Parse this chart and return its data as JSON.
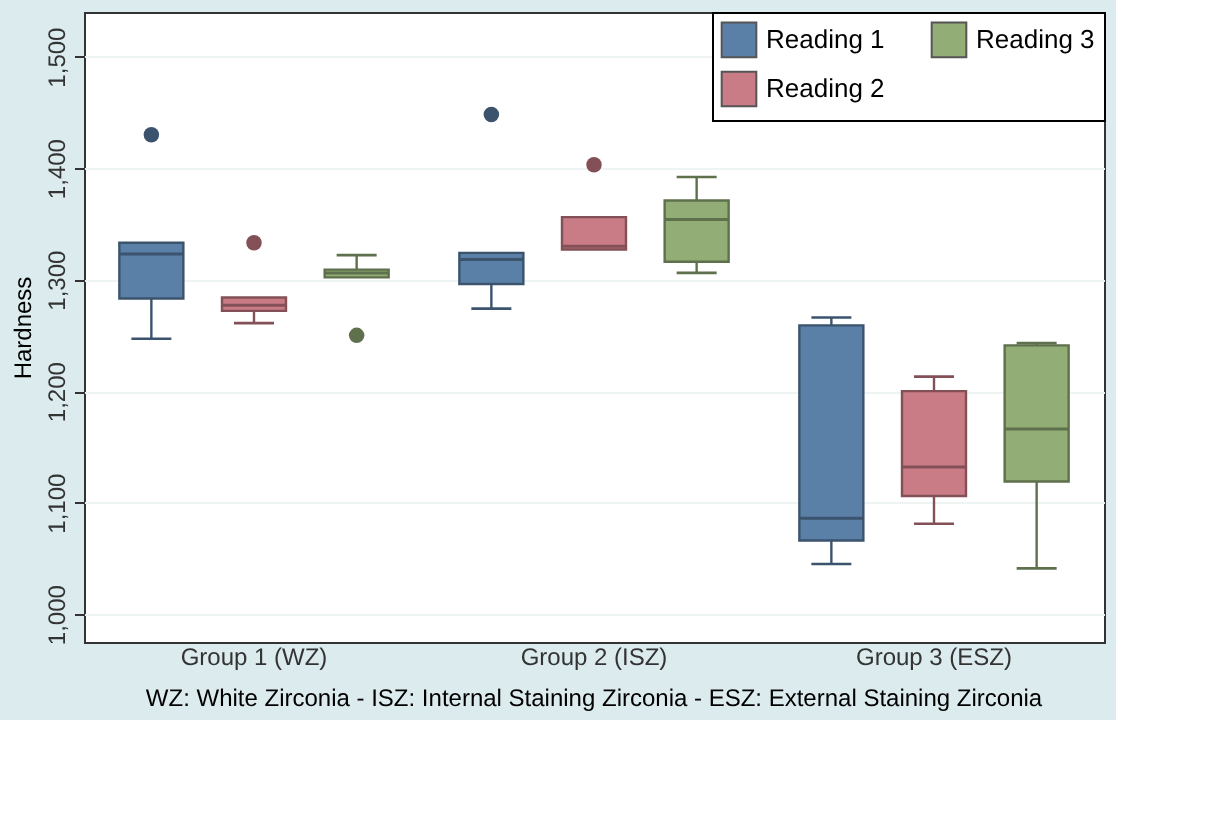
{
  "chart_data": {
    "type": "box",
    "ylabel": "Hardness",
    "categories": [
      "Group 1 (WZ)",
      "Group 2 (ISZ)",
      "Group 3 (ESZ)"
    ],
    "series": [
      {
        "name": "Reading 1",
        "color": "#5b80a8",
        "boxes": [
          {
            "low": 1247,
            "q1": 1283,
            "median": 1323,
            "q3": 1333,
            "high": 1333,
            "outliers": [
              1430
            ]
          },
          {
            "low": 1274,
            "q1": 1296,
            "median": 1318,
            "q3": 1324,
            "high": 1324,
            "outliers": [
              1448
            ]
          },
          {
            "low": 1045,
            "q1": 1066,
            "median": 1086,
            "q3": 1259,
            "high": 1266
          }
        ]
      },
      {
        "name": "Reading 2",
        "color": "#c97c85",
        "boxes": [
          {
            "low": 1261,
            "q1": 1272,
            "median": 1277,
            "q3": 1284,
            "high": 1284,
            "outliers": [
              1333
            ]
          },
          {
            "low": 1327,
            "q1": 1327,
            "median": 1330,
            "q3": 1356,
            "high": 1356,
            "outliers": [
              1403
            ]
          },
          {
            "low": 1081,
            "q1": 1106,
            "median": 1132,
            "q3": 1200,
            "high": 1213
          }
        ]
      },
      {
        "name": "Reading 3",
        "color": "#93ad76",
        "boxes": [
          {
            "low": 1302,
            "q1": 1302,
            "median": 1306,
            "q3": 1309,
            "high": 1322,
            "outliers": [
              1250
            ]
          },
          {
            "low": 1306,
            "q1": 1316,
            "median": 1354,
            "q3": 1371,
            "high": 1392
          },
          {
            "low": 1041,
            "q1": 1119,
            "median": 1166,
            "q3": 1241,
            "high": 1243
          }
        ]
      }
    ],
    "ylim": [
      975,
      1540
    ],
    "yticks": [
      {
        "value": 1000,
        "label": "1,000"
      },
      {
        "value": 1100,
        "label": "1,100"
      },
      {
        "value": 1200,
        "label": "1,200"
      },
      {
        "value": 1300,
        "label": "1,300"
      },
      {
        "value": 1400,
        "label": "1,400"
      },
      {
        "value": 1500,
        "label": "1,500"
      }
    ],
    "grid": "y",
    "legend": "top right",
    "marker": "circle",
    "annotations": [
      "WZ: White Zirconia   -   ISZ: Internal Staining Zirconia  -  ESZ: External Staining Zirconia"
    ]
  }
}
